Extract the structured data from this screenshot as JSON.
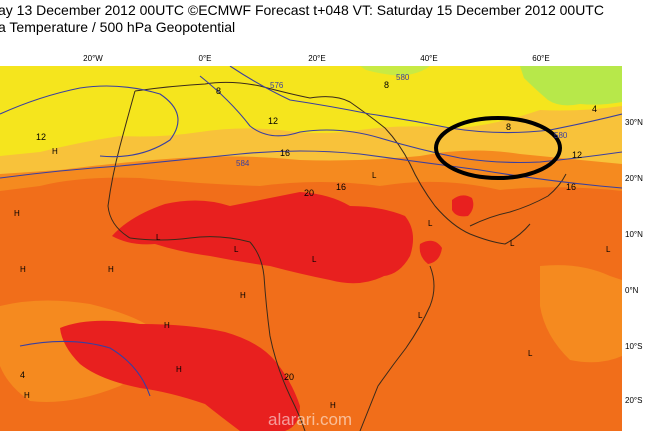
{
  "header": {
    "line1": "ay 13 December 2012 00UTC ©ECMWF Forecast t+048 VT: Saturday 15 December 2012 00UTC",
    "line2": "a Temperature / 500 hPa Geopotential"
  },
  "axes": {
    "longitudes": [
      "20°W",
      "0°E",
      "20°E",
      "40°E",
      "60°E"
    ],
    "latitudes": [
      "30°N",
      "20°N",
      "10°N",
      "0°N",
      "10°S",
      "20°S"
    ]
  },
  "contour_labels": [
    "12",
    "8",
    "8",
    "4",
    "12",
    "16",
    "20",
    "16",
    "16",
    "12",
    "20",
    "4",
    "8"
  ],
  "geopotential_labels": [
    "580",
    "576",
    "580",
    "584"
  ],
  "pressure_markers": [
    "H",
    "H",
    "H",
    "H",
    "H",
    "H",
    "H",
    "H",
    "H",
    "L",
    "L",
    "L",
    "L",
    "L",
    "L",
    "L",
    "L",
    "L"
  ],
  "colors": {
    "lime": "#b7e84a",
    "yellow": "#f5e51d",
    "light_orange": "#f8c23a",
    "orange": "#f58a1f",
    "dark_orange": "#f16e1a",
    "red": "#e8201f",
    "isoline": "#3a3fa0",
    "coast": "#3a2a1a",
    "annotation": "#000000"
  },
  "watermark": "alarari.com"
}
